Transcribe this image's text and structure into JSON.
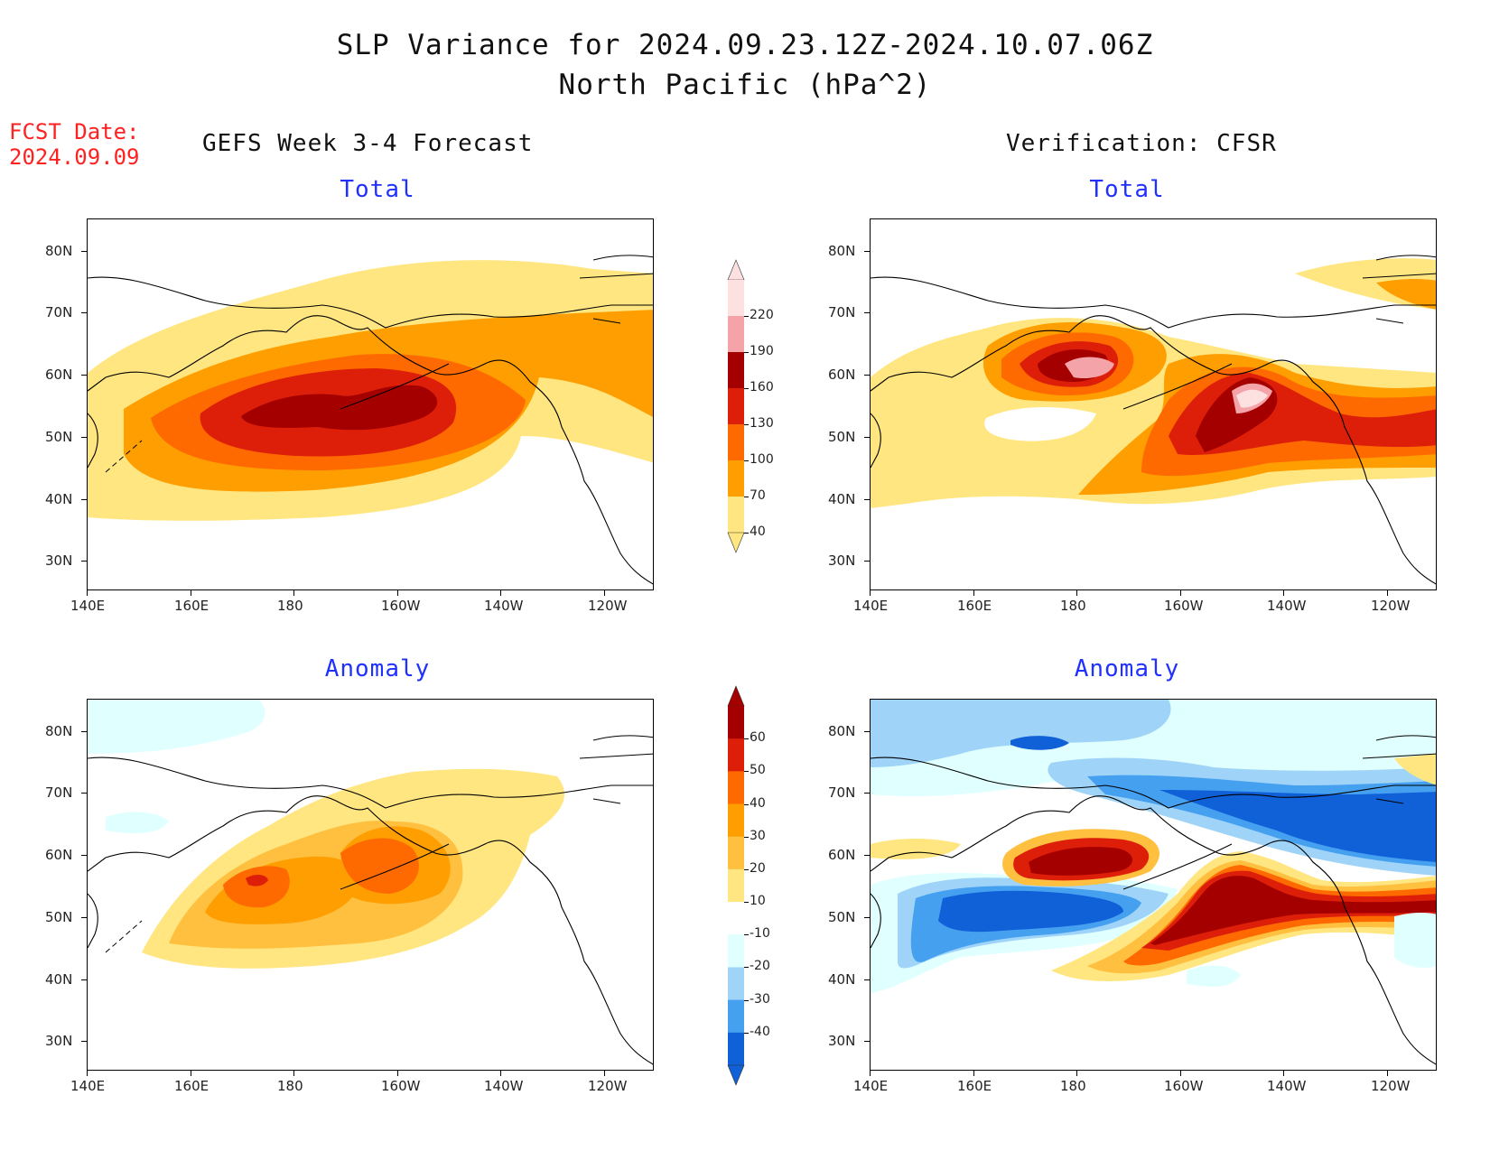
{
  "title": {
    "line1": "SLP Variance for 2024.09.23.12Z-2024.10.07.06Z",
    "line2": "North Pacific (hPa^2)"
  },
  "fcst_date": {
    "label": "FCST Date:",
    "value": "2024.09.09"
  },
  "columns": {
    "left": "GEFS Week 3-4 Forecast",
    "right": "Verification: CFSR"
  },
  "panels": {
    "total_label": "Total",
    "anomaly_label": "Anomaly"
  },
  "axes": {
    "lat_labels": [
      "80N",
      "70N",
      "60N",
      "50N",
      "40N",
      "30N"
    ],
    "lon_labels": [
      "140E",
      "160E",
      "180",
      "160W",
      "140W",
      "120W"
    ]
  },
  "colorbar_total": {
    "levels": [
      "220",
      "190",
      "160",
      "130",
      "100",
      "70",
      "40"
    ],
    "colors": [
      "#fde0e0",
      "#f4a3a8",
      "#a50000",
      "#dd1f0a",
      "#ff6a00",
      "#ff9e00",
      "#ffe680"
    ]
  },
  "colorbar_anomaly": {
    "levels": [
      "60",
      "50",
      "40",
      "30",
      "20",
      "10",
      "-10",
      "-20",
      "-30",
      "-40"
    ],
    "colors": [
      "#a50000",
      "#dd1f0a",
      "#ff6a00",
      "#ff9e00",
      "#ffc040",
      "#ffe680",
      "#ffffff",
      "#e0ffff",
      "#9fd4f8",
      "#46a0f0",
      "#1060d8"
    ]
  }
}
